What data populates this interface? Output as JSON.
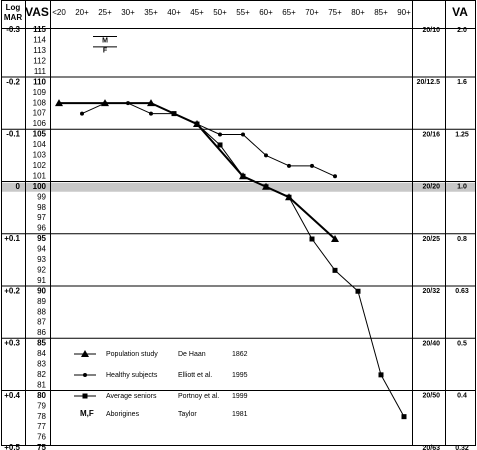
{
  "chart_data": {
    "type": "line",
    "headers": {
      "logmar": "Log MAR",
      "vas": "VAS",
      "va": "VA"
    },
    "x_ticks": [
      "<20",
      "20+",
      "25+",
      "30+",
      "35+",
      "40+",
      "45+",
      "50+",
      "55+",
      "60+",
      "65+",
      "70+",
      "75+",
      "80+",
      "85+",
      "90+"
    ],
    "vas_ticks": [
      115,
      114,
      113,
      112,
      111,
      110,
      109,
      108,
      107,
      106,
      105,
      104,
      103,
      102,
      101,
      100,
      99,
      98,
      97,
      96,
      95,
      94,
      93,
      92,
      91,
      90,
      89,
      88,
      87,
      86,
      85,
      84,
      83,
      82,
      81,
      80,
      79,
      78,
      77,
      76,
      75
    ],
    "logmar_labels": [
      {
        "vas": 115,
        "text": "-0.3"
      },
      {
        "vas": 110,
        "text": "-0.2"
      },
      {
        "vas": 105,
        "text": "-0.1"
      },
      {
        "vas": 100,
        "text": "0"
      },
      {
        "vas": 95,
        "text": "+0.1"
      },
      {
        "vas": 90,
        "text": "+0.2"
      },
      {
        "vas": 85,
        "text": "+0.3"
      },
      {
        "vas": 80,
        "text": "+0.4"
      },
      {
        "vas": 75,
        "text": "+0.5"
      }
    ],
    "snellen_labels": [
      {
        "vas": 115,
        "text": "20/10"
      },
      {
        "vas": 110,
        "text": "20/12.5"
      },
      {
        "vas": 105,
        "text": "20/16"
      },
      {
        "vas": 100,
        "text": "20/20"
      },
      {
        "vas": 95,
        "text": "20/25"
      },
      {
        "vas": 90,
        "text": "20/32"
      },
      {
        "vas": 85,
        "text": "20/40"
      },
      {
        "vas": 80,
        "text": "20/50"
      },
      {
        "vas": 75,
        "text": "20/63"
      }
    ],
    "decimal_labels": [
      {
        "vas": 115,
        "text": "2.0"
      },
      {
        "vas": 110,
        "text": "1.6"
      },
      {
        "vas": 105,
        "text": "1.25"
      },
      {
        "vas": 100,
        "text": "1.0"
      },
      {
        "vas": 95,
        "text": "0.8"
      },
      {
        "vas": 90,
        "text": "0.63"
      },
      {
        "vas": 85,
        "text": "0.5"
      },
      {
        "vas": 80,
        "text": "0.4"
      },
      {
        "vas": 75,
        "text": "0.32"
      }
    ],
    "series": [
      {
        "name": "Population study",
        "marker": "triangle",
        "stroke_width": 2,
        "points": [
          {
            "x": "<20",
            "y": 108
          },
          {
            "x": "25+",
            "y": 108
          },
          {
            "x": "35+",
            "y": 108
          },
          {
            "x": "45+",
            "y": 106
          },
          {
            "x": "55+",
            "y": 101
          },
          {
            "x": "60+",
            "y": 100
          },
          {
            "x": "65+",
            "y": 99
          },
          {
            "x": "75+",
            "y": 95
          }
        ]
      },
      {
        "name": "Healthy subjects",
        "marker": "circle",
        "stroke_width": 1,
        "points": [
          {
            "x": "20+",
            "y": 107
          },
          {
            "x": "25+",
            "y": 108
          },
          {
            "x": "30+",
            "y": 108
          },
          {
            "x": "35+",
            "y": 107
          },
          {
            "x": "40+",
            "y": 107
          },
          {
            "x": "45+",
            "y": 106
          },
          {
            "x": "50+",
            "y": 105
          },
          {
            "x": "55+",
            "y": 105
          },
          {
            "x": "60+",
            "y": 103
          },
          {
            "x": "65+",
            "y": 102
          },
          {
            "x": "70+",
            "y": 102
          },
          {
            "x": "75+",
            "y": 101
          }
        ]
      },
      {
        "name": "Average seniors",
        "marker": "square",
        "stroke_width": 1,
        "points": [
          {
            "x": "40+",
            "y": 107
          },
          {
            "x": "45+",
            "y": 106
          },
          {
            "x": "50+",
            "y": 104
          },
          {
            "x": "55+",
            "y": 101
          },
          {
            "x": "60+",
            "y": 100
          },
          {
            "x": "65+",
            "y": 99
          },
          {
            "x": "70+",
            "y": 95
          },
          {
            "x": "75+",
            "y": 92
          },
          {
            "x": "80+",
            "y": 90
          },
          {
            "x": "85+",
            "y": 82
          },
          {
            "x": "90+",
            "y": 78
          }
        ]
      }
    ],
    "aborigine_markers": [
      {
        "label": "M",
        "x": "25+",
        "y": 114
      },
      {
        "label": "F",
        "x": "25+",
        "y": 113
      }
    ],
    "legend": [
      {
        "marker": "triangle",
        "name": "Population study",
        "author": "De Haan",
        "year": "1862"
      },
      {
        "marker": "circle",
        "name": "Healthy subjects",
        "author": "Elliott et al.",
        "year": "1995"
      },
      {
        "marker": "square",
        "name": "Average seniors",
        "author": "Portnoy et al.",
        "year": "1999"
      },
      {
        "marker": "M,F",
        "name": "Aborigines",
        "author": "Taylor",
        "year": "1981"
      }
    ],
    "highlight_vas": 100,
    "colors": {
      "line": "#000000",
      "grid": "#000000",
      "highlight": "#c8c8c8",
      "text": "#000000"
    },
    "ylim": [
      75,
      115
    ]
  }
}
